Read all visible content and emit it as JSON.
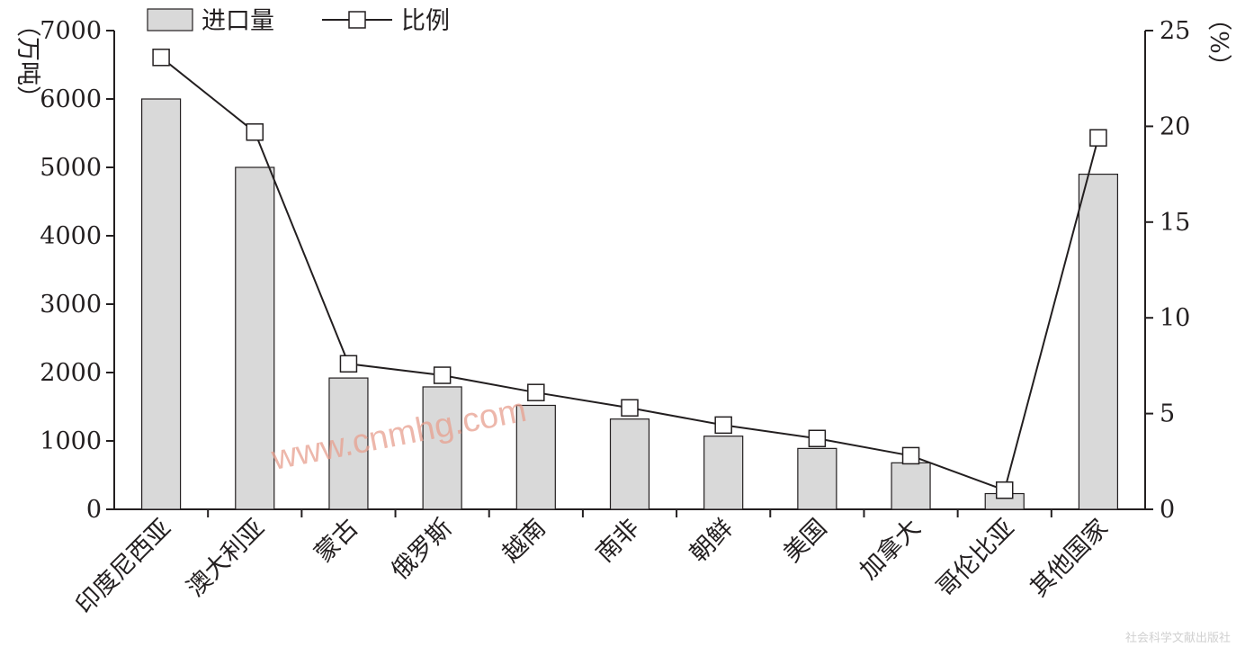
{
  "chart_data": {
    "type": "bar",
    "categories": [
      "印度尼西亚",
      "澳大利亚",
      "蒙古",
      "俄罗斯",
      "越南",
      "南非",
      "朝鲜",
      "美国",
      "加拿大",
      "哥伦比亚",
      "其他国家"
    ],
    "series": [
      {
        "name": "进口量",
        "type": "bar",
        "axis": "left",
        "color": "#d9d9d9",
        "values": [
          6000,
          5000,
          1920,
          1790,
          1520,
          1320,
          1070,
          890,
          680,
          230,
          4900
        ]
      },
      {
        "name": "比例",
        "type": "line",
        "axis": "right",
        "color": "#231f20",
        "values": [
          23.6,
          19.7,
          7.6,
          7.0,
          6.1,
          5.3,
          4.4,
          3.7,
          2.8,
          1.0,
          19.4
        ]
      }
    ],
    "ylabel": "（万吨）",
    "y2label": "（%）",
    "ylim": [
      0,
      7000
    ],
    "y2lim": [
      0,
      25
    ],
    "yticks": [
      "0",
      "1000",
      "2000",
      "3000",
      "4000",
      "5000",
      "6000",
      "7000"
    ],
    "y2ticks": [
      "0",
      "5",
      "10",
      "15",
      "20",
      "25"
    ],
    "legend": {
      "position": "top-left",
      "entries": [
        "进口量",
        "比例"
      ]
    },
    "grid": false
  },
  "watermark": "www.cnmhg.com",
  "footer_credit": "社会科学文献出版社"
}
